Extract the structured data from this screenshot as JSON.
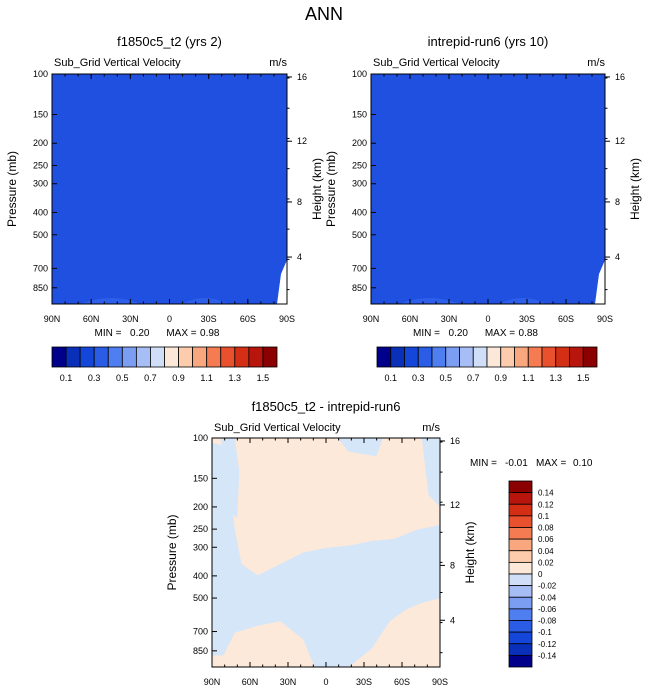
{
  "page": {
    "title": "ANN"
  },
  "chart_data": [
    {
      "type": "heatmap",
      "panel": "top-left",
      "title": "f1850c5_t2 (yrs 2)",
      "subtitle": "Sub_Grid Vertical Velocity",
      "units": "m/s",
      "xlabel": "",
      "ylabel": "Pressure (mb)",
      "y2label": "Height (km)",
      "x_ticks": [
        "90N",
        "60N",
        "30N",
        "0",
        "30S",
        "60S",
        "90S"
      ],
      "y_ticks": [
        "100",
        "150",
        "200",
        "250",
        "300",
        "400",
        "500",
        "700",
        "850"
      ],
      "y2_ticks": [
        "16",
        "12",
        "8",
        "4"
      ],
      "ylim_mb": [
        100,
        1000
      ],
      "min_label": "MIN =",
      "min_value": "0.20",
      "max_label": "MAX =",
      "max_value": "0.98",
      "dominant_level": "0.1 to 0.2",
      "colorbar": {
        "orientation": "horizontal",
        "labels": [
          "0.1",
          "0.3",
          "0.5",
          "0.7",
          "0.9",
          "1.1",
          "1.3",
          "1.5"
        ],
        "colors": [
          "#00008b",
          "#0a2fb9",
          "#1447d9",
          "#2a5ce6",
          "#4f7ef0",
          "#7b9df2",
          "#a6bdf5",
          "#d0def8",
          "#fbe8d8",
          "#fcccac",
          "#f9a77e",
          "#f47b52",
          "#e9512e",
          "#d42f14",
          "#b8160c",
          "#8b0000"
        ]
      }
    },
    {
      "type": "heatmap",
      "panel": "top-right",
      "title": "intrepid-run6 (yrs 10)",
      "subtitle": "Sub_Grid Vertical Velocity",
      "units": "m/s",
      "xlabel": "",
      "ylabel": "Pressure (mb)",
      "y2label": "Height (km)",
      "x_ticks": [
        "90N",
        "60N",
        "30N",
        "0",
        "30S",
        "60S",
        "90S"
      ],
      "y_ticks": [
        "100",
        "150",
        "200",
        "250",
        "300",
        "400",
        "500",
        "700",
        "850"
      ],
      "y2_ticks": [
        "16",
        "12",
        "8",
        "4"
      ],
      "ylim_mb": [
        100,
        1000
      ],
      "min_label": "MIN =",
      "min_value": "0.20",
      "max_label": "MAX =",
      "max_value": "0.88",
      "dominant_level": "0.1 to 0.2",
      "colorbar": {
        "orientation": "horizontal",
        "labels": [
          "0.1",
          "0.3",
          "0.5",
          "0.7",
          "0.9",
          "1.1",
          "1.3",
          "1.5"
        ],
        "colors": [
          "#00008b",
          "#0a2fb9",
          "#1447d9",
          "#2a5ce6",
          "#4f7ef0",
          "#7b9df2",
          "#a6bdf5",
          "#d0def8",
          "#fbe8d8",
          "#fcccac",
          "#f9a77e",
          "#f47b52",
          "#e9512e",
          "#d42f14",
          "#b8160c",
          "#8b0000"
        ]
      }
    },
    {
      "type": "heatmap",
      "panel": "bottom",
      "title": "f1850c5_t2 - intrepid-run6",
      "subtitle": "Sub_Grid Vertical Velocity",
      "units": "m/s",
      "xlabel": "",
      "ylabel": "Pressure (mb)",
      "y2label": "Height (km)",
      "x_ticks": [
        "90N",
        "60N",
        "30N",
        "0",
        "30S",
        "60S",
        "90S"
      ],
      "y_ticks": [
        "100",
        "150",
        "200",
        "250",
        "300",
        "400",
        "500",
        "700",
        "850"
      ],
      "y2_ticks": [
        "16",
        "12",
        "8",
        "4"
      ],
      "ylim_mb": [
        100,
        1000
      ],
      "min_label": "MIN =",
      "min_value": "-0.01",
      "max_label": "MAX =",
      "max_value": "0.10",
      "dominant_levels": [
        "-0.02 to 0",
        "0 to 0.02"
      ],
      "colorbar": {
        "orientation": "vertical",
        "labels": [
          "0.14",
          "0.12",
          "0.1",
          "0.08",
          "0.06",
          "0.04",
          "0.02",
          "0",
          "-0.02",
          "-0.04",
          "-0.06",
          "-0.08",
          "-0.1",
          "-0.12",
          "-0.14"
        ],
        "colors": [
          "#8b0000",
          "#b8160c",
          "#d42f14",
          "#e9512e",
          "#f47b52",
          "#f9a77e",
          "#fcccac",
          "#fbe8d8",
          "#d0def8",
          "#a6bdf5",
          "#7b9df2",
          "#4f7ef0",
          "#2a5ce6",
          "#1447d9",
          "#0a2fb9",
          "#00008b"
        ]
      }
    }
  ],
  "fill_colors": {
    "field": "#1f50e0",
    "field_light": "#2d5fea",
    "diff_pos": "#fde9d9",
    "diff_neg": "#d5e6f8"
  }
}
